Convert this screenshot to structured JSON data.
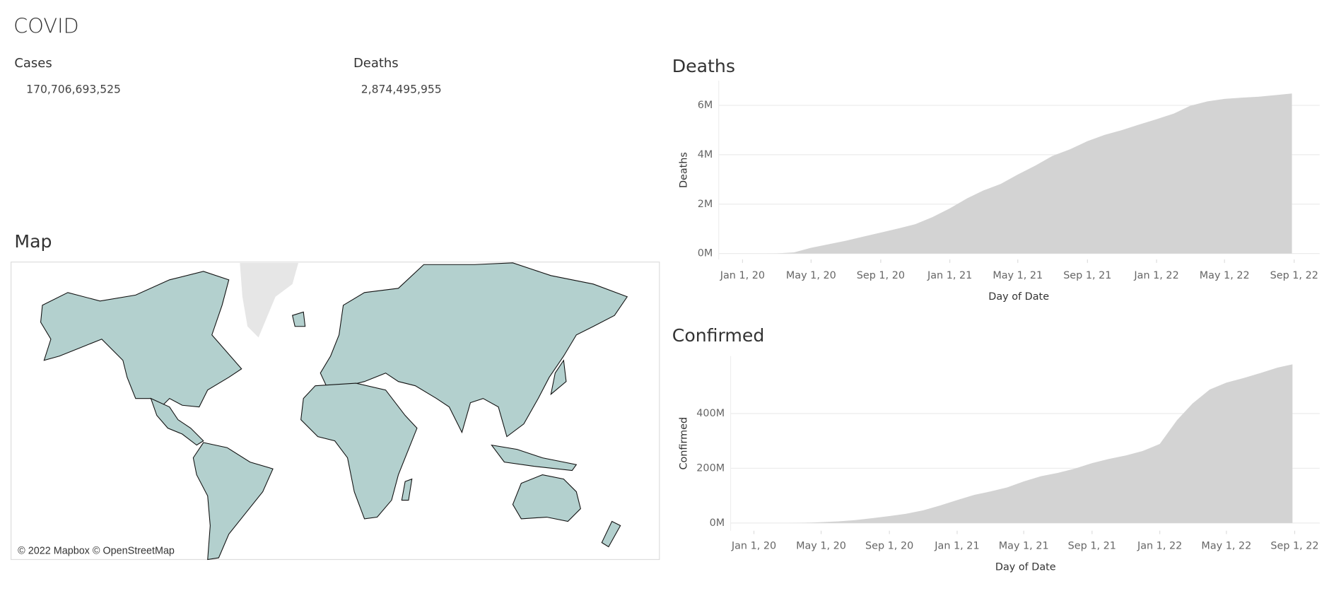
{
  "title": "COVID",
  "kpis": [
    {
      "label": "Cases",
      "value": "170,706,693,525"
    },
    {
      "label": "Deaths",
      "value": "2,874,495,955"
    }
  ],
  "map": {
    "title": "Map",
    "attribution": "© 2022 Mapbox © OpenStreetMap"
  },
  "chart_data": [
    {
      "type": "area",
      "title": "Deaths",
      "x_label": "Day of Date",
      "y_label": "Deaths",
      "grid": true,
      "x": [
        "2020-01-22",
        "2020-02-01",
        "2020-03-01",
        "2020-04-01",
        "2020-05-01",
        "2020-06-01",
        "2020-07-01",
        "2020-08-01",
        "2020-09-01",
        "2020-10-01",
        "2020-11-01",
        "2020-12-01",
        "2021-01-01",
        "2021-02-01",
        "2021-03-01",
        "2021-04-01",
        "2021-05-01",
        "2021-06-01",
        "2021-07-01",
        "2021-08-01",
        "2021-09-01",
        "2021-10-01",
        "2021-11-01",
        "2021-12-01",
        "2022-01-01",
        "2022-02-01",
        "2022-03-01",
        "2022-04-01",
        "2022-05-01",
        "2022-06-01",
        "2022-07-01",
        "2022-08-01",
        "2022-08-28"
      ],
      "series": [
        {
          "name": "Deaths",
          "color": "#d3d3d3",
          "values": [
            17,
            259,
            3000,
            47000,
            234000,
            375000,
            515000,
            685000,
            850000,
            1010000,
            1190000,
            1470000,
            1830000,
            2240000,
            2550000,
            2820000,
            3200000,
            3560000,
            3950000,
            4220000,
            4550000,
            4800000,
            5000000,
            5220000,
            5440000,
            5670000,
            5980000,
            6160000,
            6260000,
            6310000,
            6350000,
            6420000,
            6480000
          ]
        }
      ],
      "xlim": [
        "2019-11-20",
        "2022-10-16"
      ],
      "xticks": [
        {
          "value": "2020-01-01",
          "label": "Jan 1, 20"
        },
        {
          "value": "2020-05-01",
          "label": "May 1, 20"
        },
        {
          "value": "2020-09-01",
          "label": "Sep 1, 20"
        },
        {
          "value": "2021-01-01",
          "label": "Jan 1, 21"
        },
        {
          "value": "2021-05-01",
          "label": "May 1, 21"
        },
        {
          "value": "2021-09-01",
          "label": "Sep 1, 21"
        },
        {
          "value": "2022-01-01",
          "label": "Jan 1, 22"
        },
        {
          "value": "2022-05-01",
          "label": "May 1, 22"
        },
        {
          "value": "2022-09-01",
          "label": "Sep 1, 22"
        }
      ],
      "ylim": [
        -240000,
        7000000
      ],
      "yticks": [
        {
          "value": 0,
          "label": "0M"
        },
        {
          "value": 2000000,
          "label": "2M"
        },
        {
          "value": 4000000,
          "label": "4M"
        },
        {
          "value": 6000000,
          "label": "6M"
        }
      ]
    },
    {
      "type": "area",
      "title": "Confirmed",
      "x_label": "Day of Date",
      "y_label": "Confirmed",
      "grid": true,
      "x": [
        "2020-01-22",
        "2020-02-01",
        "2020-03-01",
        "2020-04-01",
        "2020-05-01",
        "2020-06-01",
        "2020-07-01",
        "2020-08-01",
        "2020-09-01",
        "2020-10-01",
        "2020-11-01",
        "2020-12-01",
        "2021-01-01",
        "2021-02-01",
        "2021-03-01",
        "2021-04-01",
        "2021-05-01",
        "2021-06-01",
        "2021-07-01",
        "2021-08-01",
        "2021-09-01",
        "2021-10-01",
        "2021-11-01",
        "2021-12-01",
        "2022-01-01",
        "2022-02-01",
        "2022-03-01",
        "2022-04-01",
        "2022-05-01",
        "2022-06-01",
        "2022-07-01",
        "2022-08-01",
        "2022-08-28"
      ],
      "series": [
        {
          "name": "Confirmed",
          "color": "#d3d3d3",
          "values": [
            555,
            12000,
            88000,
            900000,
            3300000,
            6300000,
            10600000,
            17800000,
            25600000,
            34000000,
            46500000,
            64000000,
            84000000,
            103000000,
            115000000,
            130000000,
            152000000,
            171000000,
            183000000,
            199000000,
            219000000,
            234000000,
            247000000,
            263000000,
            289000000,
            376000000,
            437000000,
            488000000,
            513000000,
            530000000,
            548000000,
            568000000,
            580000000
          ]
        }
      ],
      "xlim": [
        "2019-11-20",
        "2022-10-16"
      ],
      "xticks": [
        {
          "value": "2020-01-01",
          "label": "Jan 1, 20"
        },
        {
          "value": "2020-05-01",
          "label": "May 1, 20"
        },
        {
          "value": "2020-09-01",
          "label": "Sep 1, 20"
        },
        {
          "value": "2021-01-01",
          "label": "Jan 1, 21"
        },
        {
          "value": "2021-05-01",
          "label": "May 1, 21"
        },
        {
          "value": "2021-09-01",
          "label": "Sep 1, 21"
        },
        {
          "value": "2022-01-01",
          "label": "Jan 1, 22"
        },
        {
          "value": "2022-05-01",
          "label": "May 1, 22"
        },
        {
          "value": "2022-09-01",
          "label": "Sep 1, 22"
        }
      ],
      "ylim": [
        -28000000,
        610000000
      ],
      "yticks": [
        {
          "value": 0,
          "label": "0M"
        },
        {
          "value": 200000000,
          "label": "200M"
        },
        {
          "value": 400000000,
          "label": "400M"
        }
      ]
    }
  ]
}
